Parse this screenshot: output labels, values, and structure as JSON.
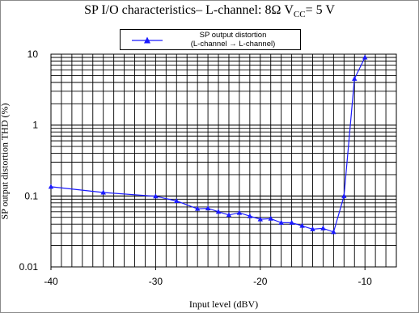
{
  "chart_data": {
    "type": "line",
    "title": "SP I/O characteristics– L-channel: 8Ω  V",
    "title_sub": "CC",
    "title_tail": "= 5 V",
    "xlabel": "Input level (dBV)",
    "ylabel": "SP output distortion  THD (%)",
    "xlim": [
      -40,
      -7
    ],
    "ylim": [
      0.01,
      10
    ],
    "y_scale": "log",
    "grid": true,
    "legend_position": "top-center",
    "legend_line1": "SP output distortion",
    "legend_line2": "(L-channel → L-channel)",
    "x_ticks": [
      {
        "value": -40,
        "label": "-40"
      },
      {
        "value": -30,
        "label": "-30"
      },
      {
        "value": -20,
        "label": "-20"
      },
      {
        "value": -10,
        "label": "-10"
      }
    ],
    "y_ticks": [
      {
        "value": 10,
        "label": "10"
      },
      {
        "value": 1,
        "label": "1"
      },
      {
        "value": 0.1,
        "label": "0.1"
      },
      {
        "value": 0.01,
        "label": "0.01"
      }
    ],
    "series": [
      {
        "name": "SP output distortion (L-channel → L-channel)",
        "color": "#1a1aff",
        "marker": "triangle",
        "x": [
          -40,
          -35,
          -30,
          -28,
          -26,
          -25,
          -24,
          -23,
          -22,
          -21,
          -20,
          -19,
          -18,
          -17,
          -16,
          -15,
          -14,
          -13,
          -12,
          -11,
          -10
        ],
        "y": [
          0.135,
          0.112,
          0.099,
          0.085,
          0.066,
          0.067,
          0.06,
          0.054,
          0.058,
          0.052,
          0.047,
          0.048,
          0.042,
          0.042,
          0.038,
          0.034,
          0.035,
          0.031,
          0.1,
          4.5,
          9
        ]
      }
    ]
  },
  "colors": {
    "grid": "#000000",
    "frame": "#8a8a8a",
    "series": "#1a1aff"
  }
}
